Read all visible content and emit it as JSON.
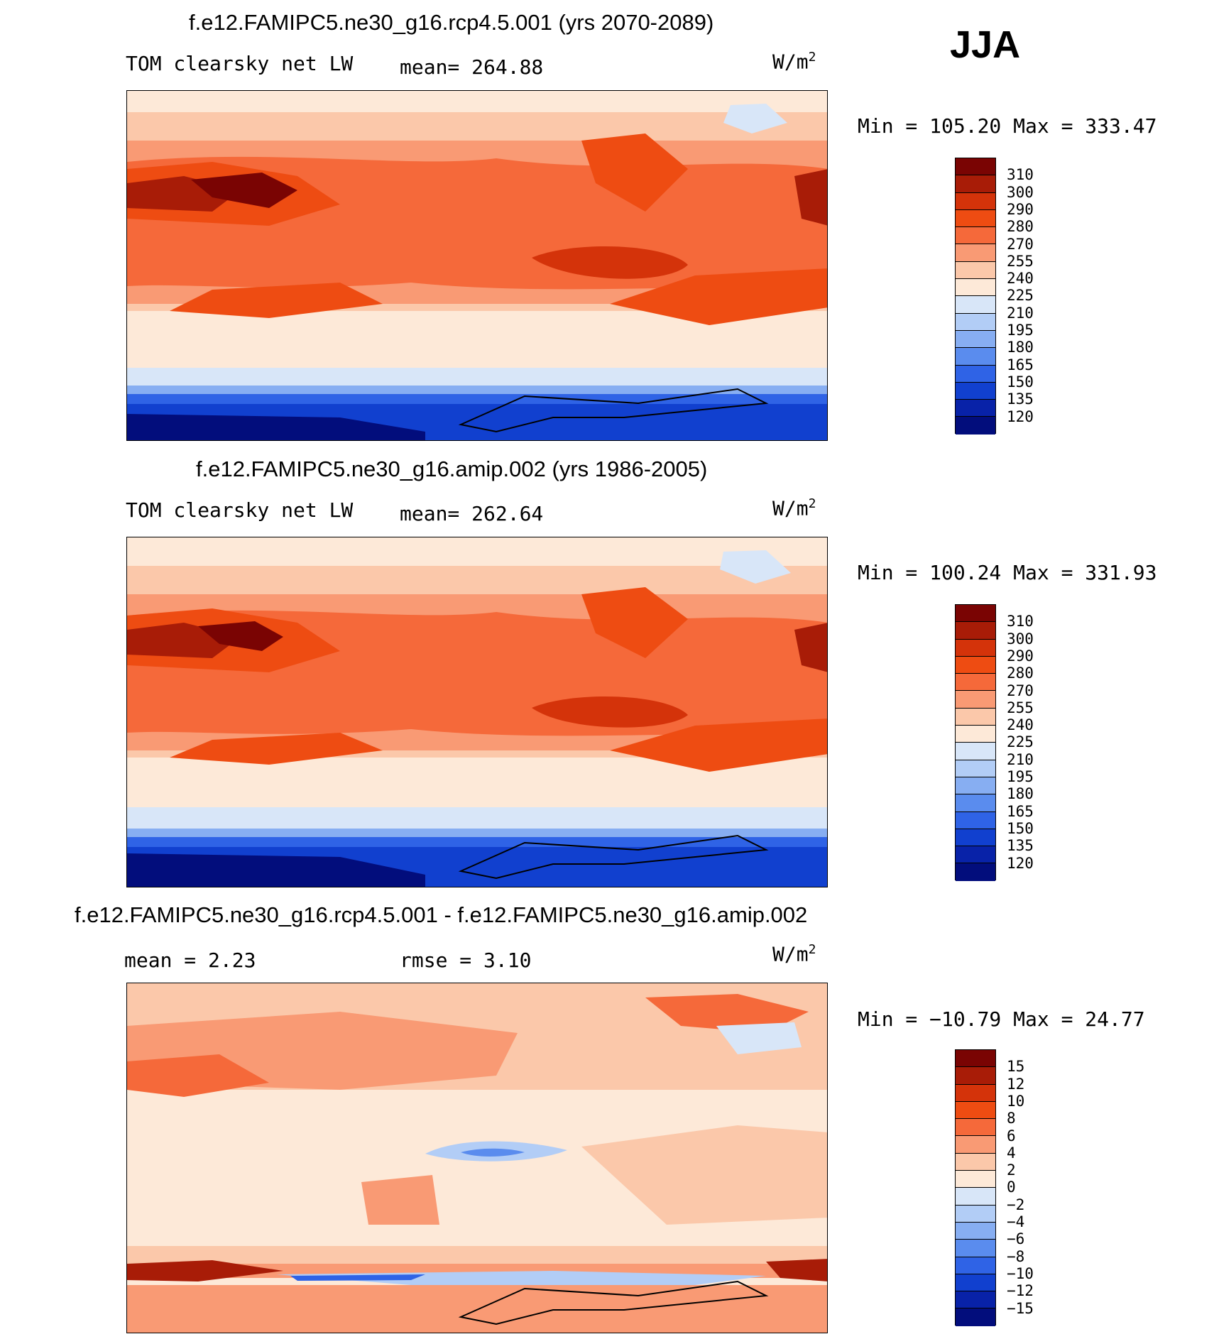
{
  "season": "JJA",
  "chart_data": [
    {
      "type": "heatmap",
      "title": "f.e12.FAMIPC5.ne30_g16.rcp4.5.001 (yrs 2070-2089)",
      "left_label": "TOM clearsky net LW",
      "stat_text": "mean= 264.88",
      "units": "W/m",
      "units_sup": "2",
      "minmax_text": "Min = 105.20 Max = 333.47",
      "stats": {
        "mean": 264.88,
        "min": 105.2,
        "max": 333.47
      },
      "colorbar": {
        "levels": [
          "310",
          "300",
          "290",
          "280",
          "270",
          "255",
          "240",
          "225",
          "210",
          "195",
          "180",
          "165",
          "150",
          "135",
          "120"
        ],
        "colors": [
          "#7a0403",
          "#a81c07",
          "#d4330a",
          "#ee4c12",
          "#f5693a",
          "#f99a74",
          "#fbc8aa",
          "#fde9d8",
          "#d8e6f8",
          "#b2cdf6",
          "#87aef2",
          "#5a8cee",
          "#2f63e6",
          "#1140cf",
          "#0822a8",
          "#020d7c"
        ]
      }
    },
    {
      "type": "heatmap",
      "title": "f.e12.FAMIPC5.ne30_g16.amip.002 (yrs 1986-2005)",
      "left_label": "TOM clearsky net LW",
      "stat_text": "mean= 262.64",
      "units": "W/m",
      "units_sup": "2",
      "minmax_text": "Min = 100.24 Max = 331.93",
      "stats": {
        "mean": 262.64,
        "min": 100.24,
        "max": 331.93
      },
      "colorbar": {
        "levels": [
          "310",
          "300",
          "290",
          "280",
          "270",
          "255",
          "240",
          "225",
          "210",
          "195",
          "180",
          "165",
          "150",
          "135",
          "120"
        ],
        "colors": [
          "#7a0403",
          "#a81c07",
          "#d4330a",
          "#ee4c12",
          "#f5693a",
          "#f99a74",
          "#fbc8aa",
          "#fde9d8",
          "#d8e6f8",
          "#b2cdf6",
          "#87aef2",
          "#5a8cee",
          "#2f63e6",
          "#1140cf",
          "#0822a8",
          "#020d7c"
        ]
      }
    },
    {
      "type": "heatmap",
      "title": "f.e12.FAMIPC5.ne30_g16.rcp4.5.001 - f.e12.FAMIPC5.ne30_g16.amip.002",
      "left_label": "mean =    2.23",
      "stat_text": "rmse =    3.10",
      "units": "W/m",
      "units_sup": "2",
      "minmax_text": "Min = −10.79 Max =  24.77",
      "stats": {
        "mean": 2.23,
        "rmse": 3.1,
        "min": -10.79,
        "max": 24.77
      },
      "colorbar": {
        "levels": [
          "15",
          "12",
          "10",
          "8",
          "6",
          "4",
          "2",
          "0",
          "−2",
          "−4",
          "−6",
          "−8",
          "−10",
          "−12",
          "−15"
        ],
        "colors": [
          "#7a0403",
          "#a81c07",
          "#d4330a",
          "#ee4c12",
          "#f5693a",
          "#f99a74",
          "#fbc8aa",
          "#fde9d8",
          "#d8e6f8",
          "#b2cdf6",
          "#87aef2",
          "#5a8cee",
          "#2f63e6",
          "#1140cf",
          "#0822a8",
          "#020d7c"
        ]
      }
    }
  ]
}
